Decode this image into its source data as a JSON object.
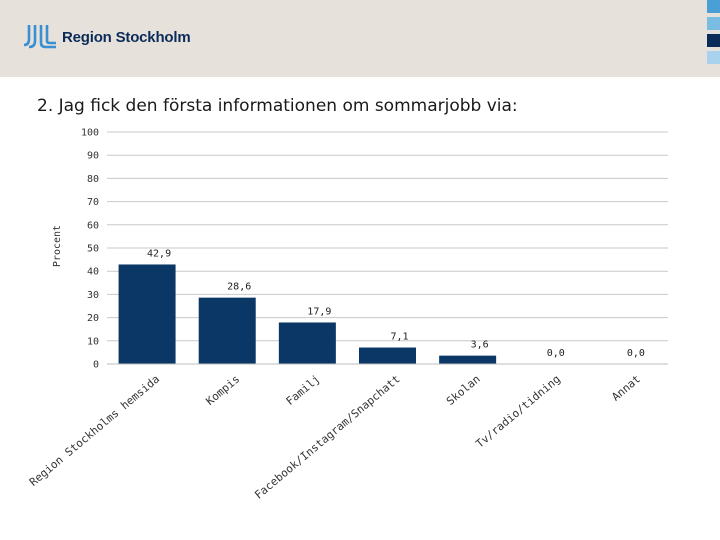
{
  "brand": {
    "name": "Region Stockholm",
    "logo_icon": "region-stockholm-logo",
    "accent_squares": [
      "#4a9fd4",
      "#7bbce3",
      "#0b2c59",
      "#a8d2ee"
    ]
  },
  "slide": {
    "title": "2. Jag fick den första informationen om sommarjobb via:"
  },
  "chart_data": {
    "type": "bar",
    "title": "2. Jag fick den första informationen om sommarjobb via:",
    "ylabel": "Procent",
    "xlabel": "",
    "ylim": [
      0,
      100
    ],
    "yticks": [
      0,
      10,
      20,
      30,
      40,
      50,
      60,
      70,
      80,
      90,
      100
    ],
    "grid": true,
    "bar_color": "#0b3766",
    "categories": [
      "Region Stockholms hemsida",
      "Kompis",
      "Familj",
      "Facebook/Instagram/Snapchatt",
      "Skolan",
      "Tv/radio/tidning",
      "Annat"
    ],
    "values": [
      42.9,
      28.6,
      17.9,
      7.1,
      3.6,
      0.0,
      0.0
    ],
    "value_labels": [
      "42,9",
      "28,6",
      "17,9",
      "7,1",
      "3,6",
      "0,0",
      "0,0"
    ]
  }
}
